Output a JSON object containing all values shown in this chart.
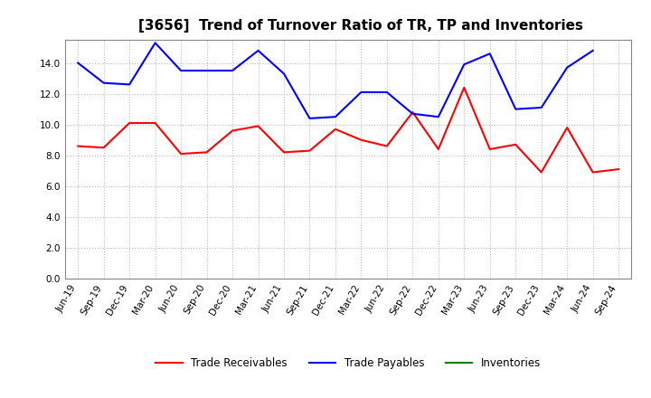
{
  "title": "[3656]  Trend of Turnover Ratio of TR, TP and Inventories",
  "x_labels": [
    "Jun-19",
    "Sep-19",
    "Dec-19",
    "Mar-20",
    "Jun-20",
    "Sep-20",
    "Dec-20",
    "Mar-21",
    "Jun-21",
    "Sep-21",
    "Dec-21",
    "Mar-22",
    "Jun-22",
    "Sep-22",
    "Dec-22",
    "Mar-23",
    "Jun-23",
    "Sep-23",
    "Dec-23",
    "Mar-24",
    "Jun-24",
    "Sep-24"
  ],
  "trade_receivables": [
    8.6,
    8.5,
    10.1,
    10.1,
    8.1,
    8.2,
    9.6,
    9.9,
    8.2,
    8.3,
    9.7,
    9.0,
    8.6,
    10.8,
    8.4,
    12.4,
    8.4,
    8.7,
    6.9,
    9.8,
    6.9,
    7.1
  ],
  "trade_payables": [
    14.0,
    12.7,
    12.6,
    15.3,
    13.5,
    13.5,
    13.5,
    14.8,
    13.3,
    10.4,
    10.5,
    12.1,
    12.1,
    10.7,
    10.5,
    13.9,
    14.6,
    11.0,
    11.1,
    13.7,
    14.8,
    null
  ],
  "inventories": [
    null,
    null,
    null,
    null,
    null,
    null,
    null,
    null,
    null,
    null,
    null,
    null,
    null,
    null,
    null,
    null,
    null,
    null,
    null,
    null,
    null,
    null
  ],
  "ylim": [
    0.0,
    15.5
  ],
  "yticks": [
    0.0,
    2.0,
    4.0,
    6.0,
    8.0,
    10.0,
    12.0,
    14.0
  ],
  "line_color_tr": "#FF0000",
  "line_color_tp": "#0000FF",
  "line_color_inv": "#008000",
  "legend_labels": [
    "Trade Receivables",
    "Trade Payables",
    "Inventories"
  ],
  "bg_color": "#FFFFFF",
  "grid_color": "#BBBBBB",
  "title_fontsize": 11,
  "tick_fontsize": 7.5
}
